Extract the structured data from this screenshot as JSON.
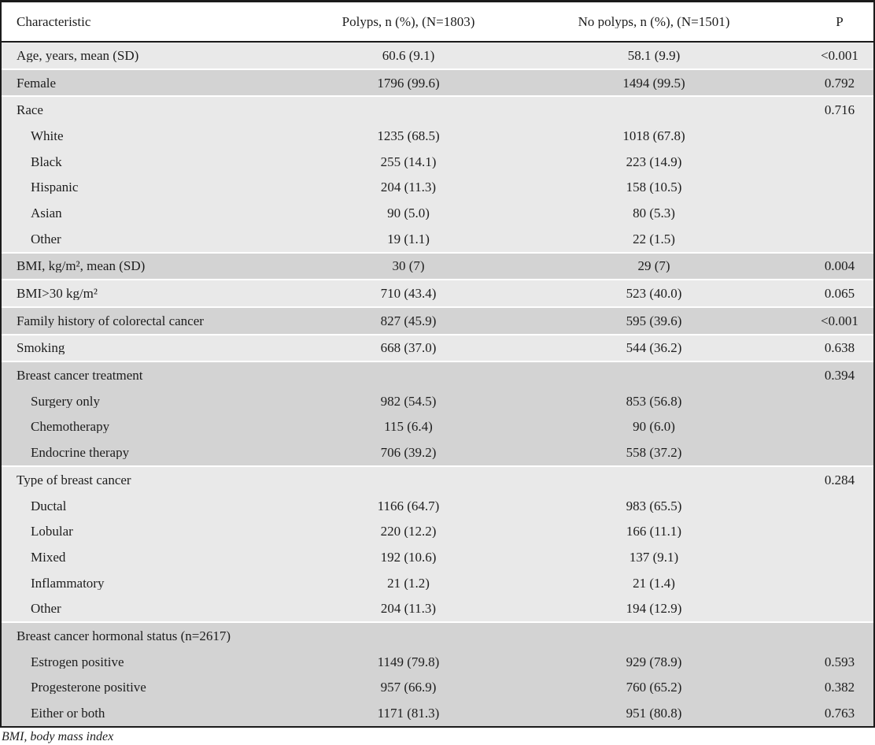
{
  "table": {
    "columns": [
      "Characteristic",
      "Polyps, n (%), (N=1803)",
      "No polyps, n (%), (N=1501)",
      "P"
    ],
    "groups": [
      {
        "shade": "light",
        "rows": [
          {
            "label": "Age, years, mean (SD)",
            "indent": false,
            "polyps": "60.6 (9.1)",
            "no_polyps": "58.1 (9.9)",
            "p": "<0.001"
          }
        ]
      },
      {
        "shade": "dark",
        "rows": [
          {
            "label": "Female",
            "indent": false,
            "polyps": "1796 (99.6)",
            "no_polyps": "1494 (99.5)",
            "p": "0.792"
          }
        ]
      },
      {
        "shade": "light",
        "rows": [
          {
            "label": "Race",
            "indent": false,
            "polyps": "",
            "no_polyps": "",
            "p": "0.716"
          },
          {
            "label": "White",
            "indent": true,
            "polyps": "1235 (68.5)",
            "no_polyps": "1018 (67.8)",
            "p": ""
          },
          {
            "label": "Black",
            "indent": true,
            "polyps": "255 (14.1)",
            "no_polyps": "223 (14.9)",
            "p": ""
          },
          {
            "label": "Hispanic",
            "indent": true,
            "polyps": "204 (11.3)",
            "no_polyps": "158 (10.5)",
            "p": ""
          },
          {
            "label": "Asian",
            "indent": true,
            "polyps": "90 (5.0)",
            "no_polyps": "80 (5.3)",
            "p": ""
          },
          {
            "label": "Other",
            "indent": true,
            "polyps": "19 (1.1)",
            "no_polyps": "22 (1.5)",
            "p": ""
          }
        ]
      },
      {
        "shade": "dark",
        "rows": [
          {
            "label": "BMI, kg/m², mean (SD)",
            "indent": false,
            "polyps": "30 (7)",
            "no_polyps": "29 (7)",
            "p": "0.004"
          }
        ]
      },
      {
        "shade": "light",
        "rows": [
          {
            "label": "BMI>30 kg/m²",
            "indent": false,
            "polyps": "710 (43.4)",
            "no_polyps": "523 (40.0)",
            "p": "0.065"
          }
        ]
      },
      {
        "shade": "dark",
        "rows": [
          {
            "label": "Family history of colorectal cancer",
            "indent": false,
            "polyps": "827 (45.9)",
            "no_polyps": "595 (39.6)",
            "p": "<0.001"
          }
        ]
      },
      {
        "shade": "light",
        "rows": [
          {
            "label": "Smoking",
            "indent": false,
            "polyps": "668 (37.0)",
            "no_polyps": "544 (36.2)",
            "p": "0.638"
          }
        ]
      },
      {
        "shade": "dark",
        "rows": [
          {
            "label": "Breast cancer treatment",
            "indent": false,
            "polyps": "",
            "no_polyps": "",
            "p": "0.394"
          },
          {
            "label": "Surgery only",
            "indent": true,
            "polyps": "982 (54.5)",
            "no_polyps": "853 (56.8)",
            "p": ""
          },
          {
            "label": "Chemotherapy",
            "indent": true,
            "polyps": "115 (6.4)",
            "no_polyps": "90 (6.0)",
            "p": ""
          },
          {
            "label": "Endocrine therapy",
            "indent": true,
            "polyps": "706 (39.2)",
            "no_polyps": "558 (37.2)",
            "p": ""
          }
        ]
      },
      {
        "shade": "light",
        "rows": [
          {
            "label": "Type of breast cancer",
            "indent": false,
            "polyps": "",
            "no_polyps": "",
            "p": "0.284"
          },
          {
            "label": "Ductal",
            "indent": true,
            "polyps": "1166 (64.7)",
            "no_polyps": "983 (65.5)",
            "p": ""
          },
          {
            "label": "Lobular",
            "indent": true,
            "polyps": "220 (12.2)",
            "no_polyps": "166 (11.1)",
            "p": ""
          },
          {
            "label": "Mixed",
            "indent": true,
            "polyps": "192 (10.6)",
            "no_polyps": "137 (9.1)",
            "p": ""
          },
          {
            "label": "Inflammatory",
            "indent": true,
            "polyps": "21 (1.2)",
            "no_polyps": "21 (1.4)",
            "p": ""
          },
          {
            "label": "Other",
            "indent": true,
            "polyps": "204 (11.3)",
            "no_polyps": "194 (12.9)",
            "p": ""
          }
        ]
      },
      {
        "shade": "dark",
        "rows": [
          {
            "label": "Breast cancer hormonal status (n=2617)",
            "indent": false,
            "polyps": "",
            "no_polyps": "",
            "p": ""
          },
          {
            "label": "Estrogen positive",
            "indent": true,
            "polyps": "1149 (79.8)",
            "no_polyps": "929 (78.9)",
            "p": "0.593"
          },
          {
            "label": "Progesterone positive",
            "indent": true,
            "polyps": "957 (66.9)",
            "no_polyps": "760 (65.2)",
            "p": "0.382"
          },
          {
            "label": "Either or both",
            "indent": true,
            "polyps": "1171 (81.3)",
            "no_polyps": "951 (80.8)",
            "p": "0.763"
          }
        ]
      }
    ],
    "footnote": "BMI, body mass index"
  },
  "colors": {
    "row_light": "#e9e9e9",
    "row_dark": "#d3d3d3",
    "border": "#1b1b1b",
    "background": "#ffffff"
  }
}
